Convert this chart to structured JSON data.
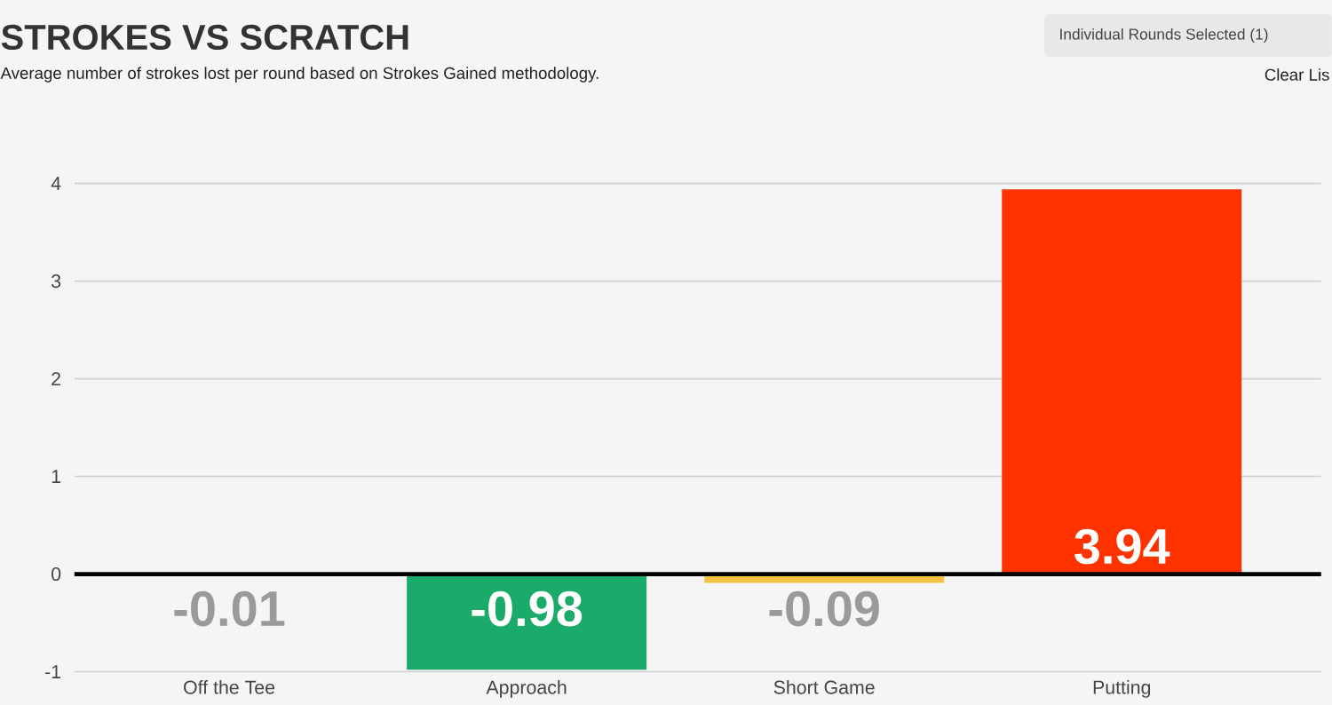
{
  "chart_data": {
    "type": "bar",
    "title": "STROKES VS SCRATCH",
    "subtitle": "Average number of strokes lost per round based on Strokes Gained methodology.",
    "annotations": [
      "Individual Rounds Selected (1)",
      "Clear Lis"
    ],
    "categories": [
      "Off the Tee",
      "Approach",
      "Short Game",
      "Putting"
    ],
    "values": [
      -0.01,
      -0.98,
      -0.09,
      3.94
    ],
    "colors": [
      "#f5c242",
      "#1aab6a",
      "#f5c242",
      "#ff3300"
    ],
    "ylim": [
      -1,
      4
    ],
    "yticks": [
      -1,
      0,
      1,
      2,
      3,
      4
    ],
    "grid": "y",
    "ref_lines": [
      {
        "axis": "y",
        "value": 0,
        "color": "#000000"
      }
    ],
    "data_labels": true
  }
}
